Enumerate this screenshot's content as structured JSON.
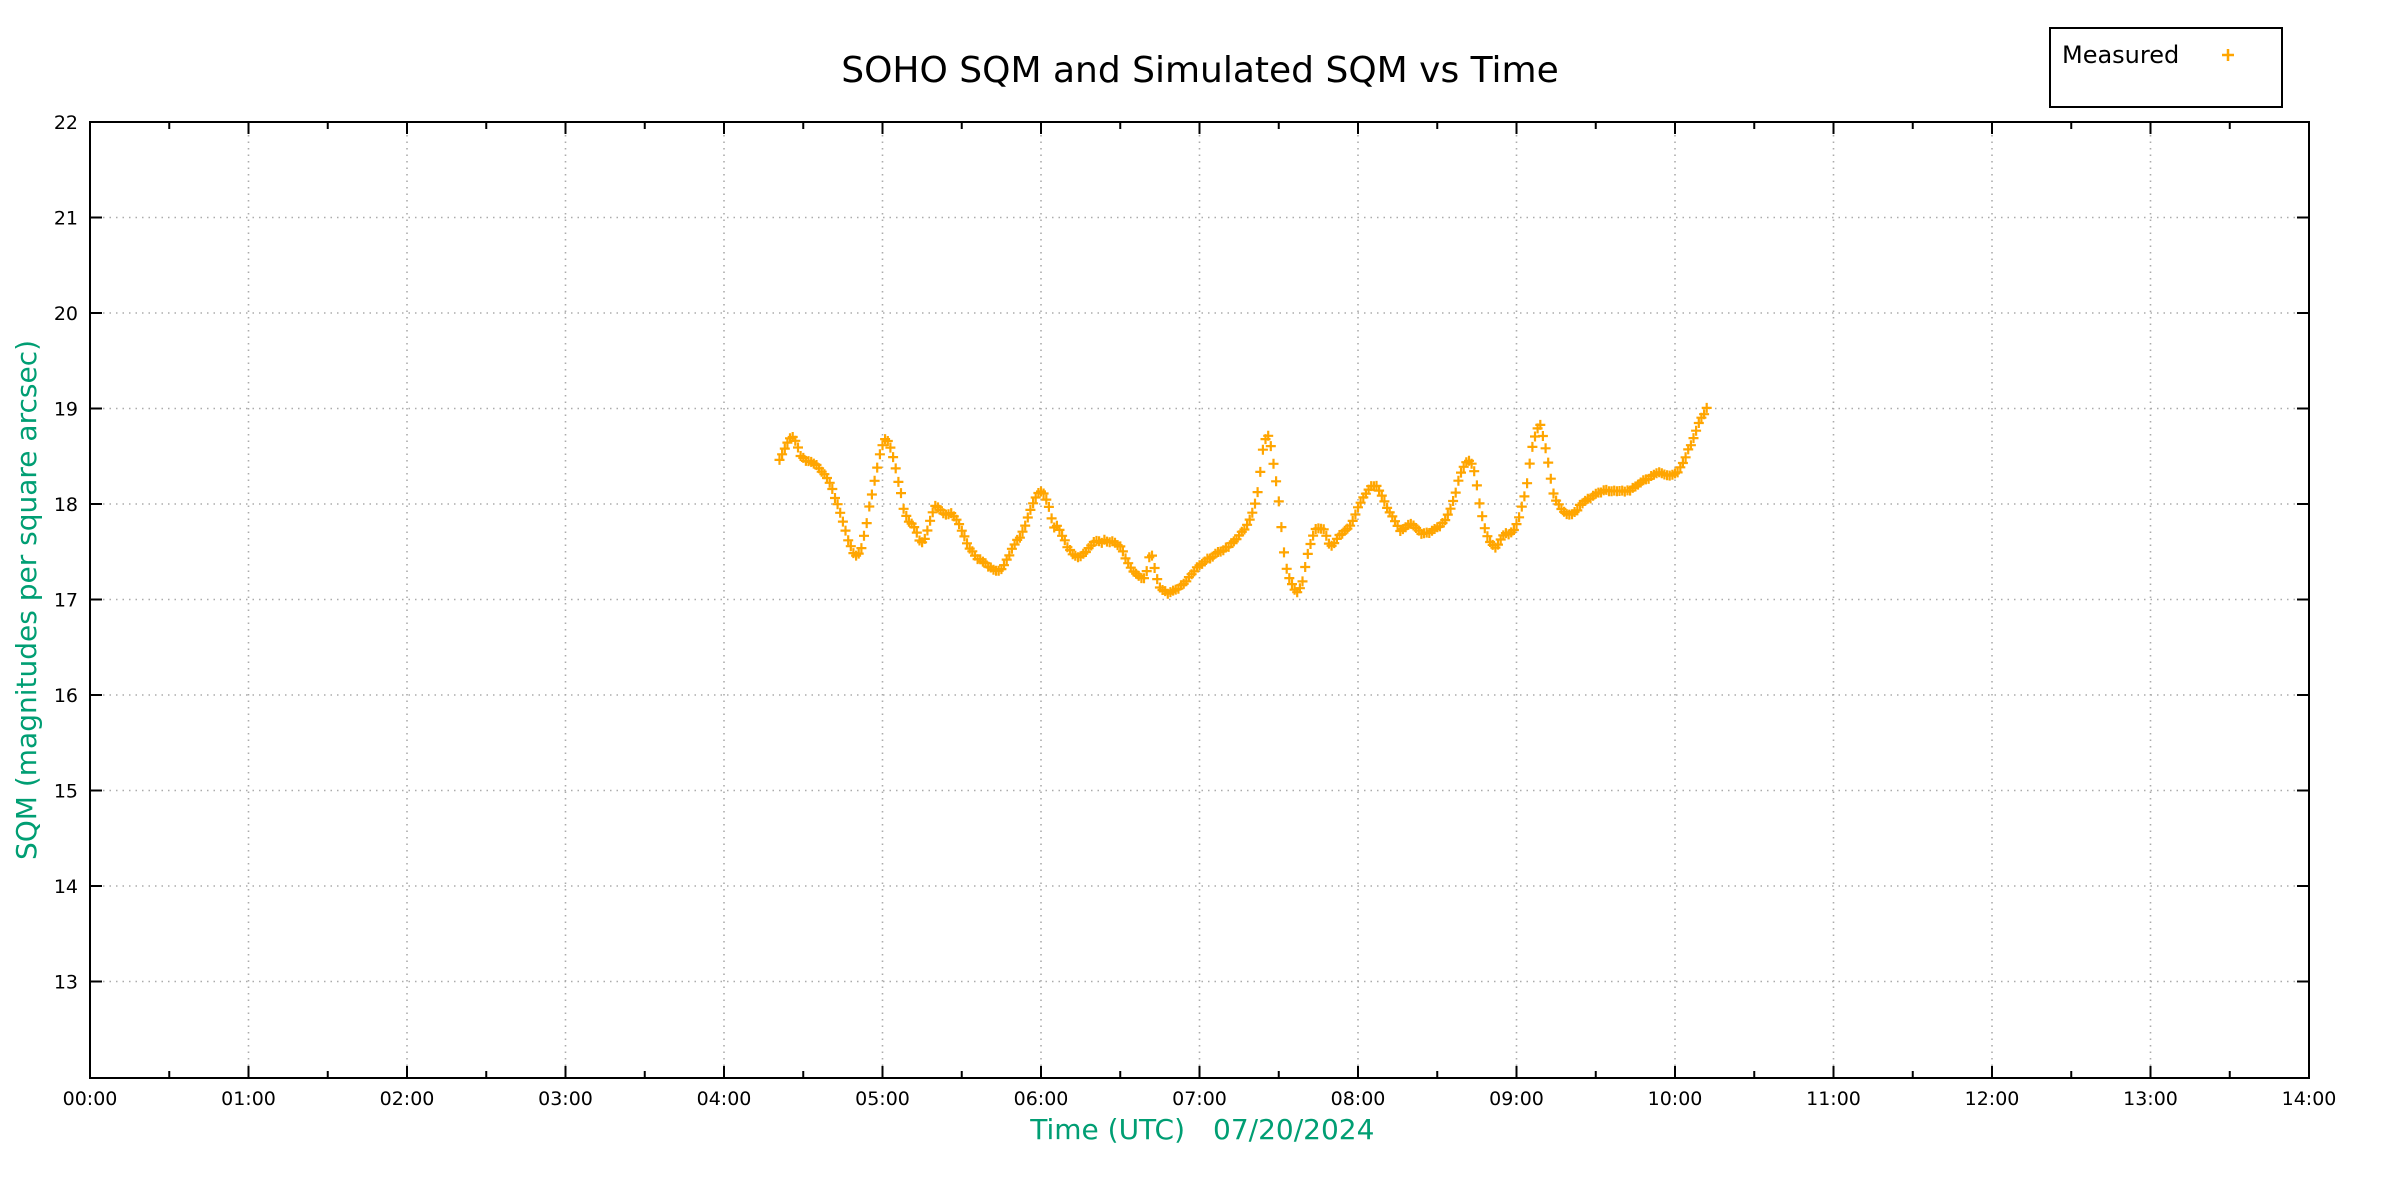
{
  "title": "SOHO SQM and Simulated SQM vs Time",
  "legend": {
    "entries": [
      {
        "label": "Measured",
        "marker": "plus",
        "color": "#FFA500"
      }
    ]
  },
  "axes": {
    "x": {
      "label_time": "Time (UTC)",
      "label_date": "07/20/2024",
      "tick_labels": [
        "00:00",
        "01:00",
        "02:00",
        "03:00",
        "04:00",
        "05:00",
        "06:00",
        "07:00",
        "08:00",
        "09:00",
        "10:00",
        "11:00",
        "12:00",
        "13:00",
        "14:00"
      ],
      "range_hours": [
        0,
        14
      ],
      "minor_tick_interval_hours": 0.5
    },
    "y": {
      "label": "SQM (magnitudes per square arcsec)",
      "tick_labels": [
        "22",
        "21",
        "20",
        "19",
        "18",
        "17",
        "16",
        "15",
        "14",
        "13"
      ],
      "tick_values": [
        22,
        21,
        20,
        19,
        18,
        17,
        16,
        15,
        14,
        13
      ],
      "range": [
        11.99,
        22
      ]
    }
  },
  "colors": {
    "marker_orange": "#FFA500",
    "axis_label_green": "#009E73",
    "grid_gray": "#ababab",
    "border_black": "#000000",
    "background": "#ffffff"
  },
  "chart_data": {
    "type": "scatter",
    "title": "SOHO SQM and Simulated SQM vs Time",
    "xlabel": "Time (UTC)   07/20/2024",
    "ylabel": "SQM (magnitudes per square arcsec)",
    "xlim_hours": [
      0,
      14
    ],
    "ylim": [
      11.99,
      22
    ],
    "grid": true,
    "legend_position": "top-right-above-plot",
    "marker": "plus",
    "series": [
      {
        "name": "Measured",
        "color": "#FFA500",
        "sample_interval_hours": 0.0166667,
        "noise_amplitude_mag": 0.011,
        "keypoints": [
          [
            4.35,
            18.47
          ],
          [
            4.38,
            18.56
          ],
          [
            4.405,
            18.66
          ],
          [
            4.43,
            18.72
          ],
          [
            4.455,
            18.66
          ],
          [
            4.48,
            18.52
          ],
          [
            4.51,
            18.46
          ],
          [
            4.55,
            18.43
          ],
          [
            4.59,
            18.4
          ],
          [
            4.63,
            18.32
          ],
          [
            4.66,
            18.24
          ],
          [
            4.69,
            18.12
          ],
          [
            4.72,
            17.98
          ],
          [
            4.75,
            17.82
          ],
          [
            4.78,
            17.63
          ],
          [
            4.81,
            17.51
          ],
          [
            4.84,
            17.45
          ],
          [
            4.87,
            17.54
          ],
          [
            4.895,
            17.76
          ],
          [
            4.92,
            18.0
          ],
          [
            4.945,
            18.2
          ],
          [
            4.97,
            18.42
          ],
          [
            4.995,
            18.6
          ],
          [
            5.02,
            18.69
          ],
          [
            5.045,
            18.62
          ],
          [
            5.07,
            18.48
          ],
          [
            5.095,
            18.28
          ],
          [
            5.12,
            18.08
          ],
          [
            5.14,
            17.9
          ],
          [
            5.165,
            17.82
          ],
          [
            5.19,
            17.8
          ],
          [
            5.215,
            17.7
          ],
          [
            5.24,
            17.58
          ],
          [
            5.265,
            17.63
          ],
          [
            5.29,
            17.76
          ],
          [
            5.315,
            17.9
          ],
          [
            5.33,
            17.99
          ],
          [
            5.355,
            17.95
          ],
          [
            5.38,
            17.9
          ],
          [
            5.405,
            17.88
          ],
          [
            5.43,
            17.9
          ],
          [
            5.455,
            17.87
          ],
          [
            5.48,
            17.81
          ],
          [
            5.51,
            17.68
          ],
          [
            5.54,
            17.57
          ],
          [
            5.57,
            17.49
          ],
          [
            5.6,
            17.43
          ],
          [
            5.63,
            17.4
          ],
          [
            5.66,
            17.36
          ],
          [
            5.695,
            17.32
          ],
          [
            5.73,
            17.3
          ],
          [
            5.765,
            17.35
          ],
          [
            5.8,
            17.47
          ],
          [
            5.83,
            17.57
          ],
          [
            5.86,
            17.64
          ],
          [
            5.89,
            17.72
          ],
          [
            5.92,
            17.87
          ],
          [
            5.95,
            18.01
          ],
          [
            5.98,
            18.11
          ],
          [
            6.0,
            18.14
          ],
          [
            6.025,
            18.08
          ],
          [
            6.05,
            17.98
          ],
          [
            6.07,
            17.82
          ],
          [
            6.09,
            17.73
          ],
          [
            6.105,
            17.78
          ],
          [
            6.12,
            17.7
          ],
          [
            6.145,
            17.63
          ],
          [
            6.17,
            17.54
          ],
          [
            6.2,
            17.48
          ],
          [
            6.23,
            17.43
          ],
          [
            6.26,
            17.46
          ],
          [
            6.29,
            17.52
          ],
          [
            6.32,
            17.58
          ],
          [
            6.35,
            17.62
          ],
          [
            6.375,
            17.59
          ],
          [
            6.4,
            17.62
          ],
          [
            6.425,
            17.59
          ],
          [
            6.45,
            17.62
          ],
          [
            6.475,
            17.58
          ],
          [
            6.5,
            17.55
          ],
          [
            6.525,
            17.47
          ],
          [
            6.55,
            17.38
          ],
          [
            6.58,
            17.3
          ],
          [
            6.61,
            17.25
          ],
          [
            6.64,
            17.22
          ],
          [
            6.66,
            17.24
          ],
          [
            6.675,
            17.38
          ],
          [
            6.69,
            17.49
          ],
          [
            6.705,
            17.44
          ],
          [
            6.72,
            17.31
          ],
          [
            6.735,
            17.19
          ],
          [
            6.75,
            17.13
          ],
          [
            6.775,
            17.09
          ],
          [
            6.8,
            17.07
          ],
          [
            6.83,
            17.08
          ],
          [
            6.86,
            17.11
          ],
          [
            6.89,
            17.15
          ],
          [
            6.92,
            17.2
          ],
          [
            6.95,
            17.27
          ],
          [
            6.98,
            17.33
          ],
          [
            7.01,
            17.37
          ],
          [
            7.05,
            17.42
          ],
          [
            7.09,
            17.46
          ],
          [
            7.13,
            17.5
          ],
          [
            7.17,
            17.54
          ],
          [
            7.21,
            17.6
          ],
          [
            7.25,
            17.67
          ],
          [
            7.28,
            17.73
          ],
          [
            7.31,
            17.82
          ],
          [
            7.335,
            17.92
          ],
          [
            7.355,
            18.02
          ],
          [
            7.375,
            18.2
          ],
          [
            7.39,
            18.45
          ],
          [
            7.405,
            18.62
          ],
          [
            7.42,
            18.71
          ],
          [
            7.435,
            18.72
          ],
          [
            7.45,
            18.6
          ],
          [
            7.462,
            18.47
          ],
          [
            7.474,
            18.35
          ],
          [
            7.486,
            18.22
          ],
          [
            7.498,
            18.05
          ],
          [
            7.51,
            17.86
          ],
          [
            7.525,
            17.61
          ],
          [
            7.54,
            17.4
          ],
          [
            7.555,
            17.27
          ],
          [
            7.57,
            17.21
          ],
          [
            7.585,
            17.15
          ],
          [
            7.6,
            17.11
          ],
          [
            7.615,
            17.08
          ],
          [
            7.63,
            17.1
          ],
          [
            7.645,
            17.14
          ],
          [
            7.66,
            17.28
          ],
          [
            7.675,
            17.42
          ],
          [
            7.69,
            17.54
          ],
          [
            7.71,
            17.64
          ],
          [
            7.73,
            17.74
          ],
          [
            7.745,
            17.76
          ],
          [
            7.76,
            17.73
          ],
          [
            7.775,
            17.77
          ],
          [
            7.79,
            17.7
          ],
          [
            7.805,
            17.64
          ],
          [
            7.82,
            17.58
          ],
          [
            7.835,
            17.57
          ],
          [
            7.85,
            17.59
          ],
          [
            7.87,
            17.64
          ],
          [
            7.89,
            17.68
          ],
          [
            7.915,
            17.72
          ],
          [
            7.94,
            17.75
          ],
          [
            7.965,
            17.81
          ],
          [
            7.99,
            17.92
          ],
          [
            8.01,
            17.99
          ],
          [
            8.035,
            18.07
          ],
          [
            8.06,
            18.15
          ],
          [
            8.085,
            18.19
          ],
          [
            8.11,
            18.2
          ],
          [
            8.13,
            18.15
          ],
          [
            8.15,
            18.09
          ],
          [
            8.17,
            18.02
          ],
          [
            8.19,
            17.94
          ],
          [
            8.21,
            17.89
          ],
          [
            8.23,
            17.82
          ],
          [
            8.25,
            17.76
          ],
          [
            8.265,
            17.72
          ],
          [
            8.285,
            17.74
          ],
          [
            8.305,
            17.77
          ],
          [
            8.325,
            17.8
          ],
          [
            8.345,
            17.77
          ],
          [
            8.365,
            17.75
          ],
          [
            8.385,
            17.71
          ],
          [
            8.405,
            17.68
          ],
          [
            8.43,
            17.69
          ],
          [
            8.455,
            17.71
          ],
          [
            8.48,
            17.74
          ],
          [
            8.505,
            17.76
          ],
          [
            8.53,
            17.79
          ],
          [
            8.555,
            17.85
          ],
          [
            8.578,
            17.92
          ],
          [
            8.6,
            18.03
          ],
          [
            8.62,
            18.15
          ],
          [
            8.64,
            18.28
          ],
          [
            8.66,
            18.38
          ],
          [
            8.68,
            18.44
          ],
          [
            8.695,
            18.47
          ],
          [
            8.71,
            18.45
          ],
          [
            8.725,
            18.41
          ],
          [
            8.74,
            18.3
          ],
          [
            8.755,
            18.15
          ],
          [
            8.77,
            17.97
          ],
          [
            8.79,
            17.81
          ],
          [
            8.81,
            17.7
          ],
          [
            8.83,
            17.62
          ],
          [
            8.85,
            17.57
          ],
          [
            8.87,
            17.55
          ],
          [
            8.89,
            17.6
          ],
          [
            8.91,
            17.67
          ],
          [
            8.93,
            17.7
          ],
          [
            8.955,
            17.68
          ],
          [
            8.98,
            17.73
          ],
          [
            9.0,
            17.78
          ],
          [
            9.02,
            17.87
          ],
          [
            9.035,
            17.99
          ],
          [
            9.05,
            18.08
          ],
          [
            9.065,
            18.2
          ],
          [
            9.08,
            18.38
          ],
          [
            9.095,
            18.55
          ],
          [
            9.11,
            18.68
          ],
          [
            9.125,
            18.76
          ],
          [
            9.14,
            18.81
          ],
          [
            9.15,
            18.83
          ],
          [
            9.165,
            18.73
          ],
          [
            9.18,
            18.62
          ],
          [
            9.195,
            18.48
          ],
          [
            9.21,
            18.33
          ],
          [
            9.225,
            18.17
          ],
          [
            9.24,
            18.07
          ],
          [
            9.26,
            18.0
          ],
          [
            9.28,
            17.96
          ],
          [
            9.3,
            17.92
          ],
          [
            9.32,
            17.9
          ],
          [
            9.34,
            17.88
          ],
          [
            9.36,
            17.9
          ],
          [
            9.38,
            17.93
          ],
          [
            9.4,
            17.98
          ],
          [
            9.43,
            18.02
          ],
          [
            9.46,
            18.06
          ],
          [
            9.49,
            18.1
          ],
          [
            9.52,
            18.12
          ],
          [
            9.55,
            18.14
          ],
          [
            9.59,
            18.14
          ],
          [
            9.63,
            18.14
          ],
          [
            9.67,
            18.13
          ],
          [
            9.71,
            18.14
          ],
          [
            9.75,
            18.18
          ],
          [
            9.79,
            18.23
          ],
          [
            9.83,
            18.27
          ],
          [
            9.87,
            18.31
          ],
          [
            9.91,
            18.33
          ],
          [
            9.95,
            18.31
          ],
          [
            9.99,
            18.3
          ],
          [
            10.02,
            18.34
          ],
          [
            10.05,
            18.42
          ],
          [
            10.08,
            18.55
          ],
          [
            10.11,
            18.65
          ],
          [
            10.135,
            18.78
          ],
          [
            10.16,
            18.88
          ],
          [
            10.185,
            18.95
          ],
          [
            10.21,
            19.04
          ]
        ]
      }
    ]
  }
}
